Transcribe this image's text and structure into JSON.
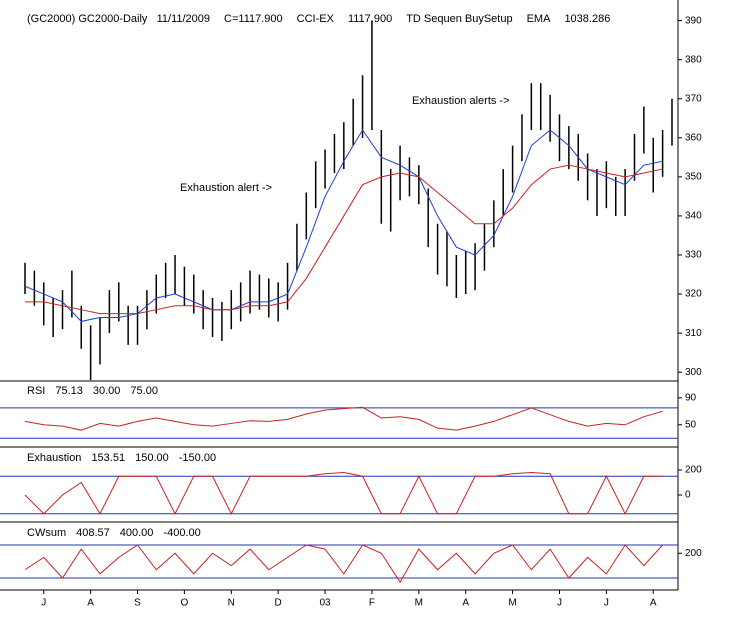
{
  "chart_data": [
    {
      "type": "ohlc",
      "header": [
        {
          "text": "(GC2000) GC2000-Daily   11/11/2009",
          "color": "#000000"
        },
        {
          "text": "C=1117.900",
          "color": "#22bb22"
        },
        {
          "text": "CCI-EX",
          "color": "#000000"
        },
        {
          "text": "1117.900",
          "color": "#dd2222"
        },
        {
          "text": "TD Sequen BuySetup",
          "color": "#000000"
        },
        {
          "text": "EMA",
          "color": "#000000"
        },
        {
          "text": "1038.286",
          "color": "#dd2222"
        }
      ],
      "annotations": [
        "Exhaustion alert ->",
        "Exhaustion alerts ->"
      ],
      "bar_color": "#000000",
      "high": [
        328,
        326,
        323,
        319,
        321,
        326,
        317,
        312,
        314,
        321,
        323,
        317,
        317,
        321,
        325,
        328,
        330,
        327,
        325,
        321,
        319,
        318,
        321,
        323,
        326,
        325,
        324,
        323,
        328,
        338,
        346,
        354,
        357,
        361,
        364,
        370,
        376,
        390,
        362,
        352,
        358,
        355,
        353,
        347,
        338,
        336,
        330,
        331,
        333,
        338,
        344,
        352,
        358,
        366,
        374,
        374,
        371,
        366,
        363,
        361,
        356,
        352,
        354,
        350,
        352,
        361,
        368,
        360,
        362,
        370
      ],
      "low": [
        320,
        317,
        312,
        309,
        311,
        314,
        306,
        298,
        302,
        310,
        313,
        307,
        307,
        311,
        315,
        319,
        320,
        317,
        315,
        311,
        309,
        308,
        311,
        313,
        315,
        316,
        314,
        313,
        316,
        326,
        334,
        342,
        347,
        351,
        352,
        358,
        360,
        362,
        338,
        336,
        344,
        345,
        343,
        332,
        325,
        322,
        319,
        320,
        321,
        326,
        332,
        340,
        346,
        354,
        362,
        362,
        359,
        354,
        352,
        349,
        344,
        340,
        342,
        340,
        340,
        349,
        356,
        346,
        350,
        358
      ],
      "ema": {
        "x": [
          0,
          2,
          4,
          6,
          8,
          10,
          12,
          14,
          16,
          18,
          20,
          22,
          24,
          26,
          28,
          30,
          32,
          34,
          36,
          38,
          40,
          42,
          44,
          46,
          48,
          50,
          52,
          54,
          56,
          58,
          60,
          62,
          64,
          66,
          68
        ],
        "series": [
          {
            "color": "#1f3fd8",
            "values": [
              322,
              320,
              318,
              313,
              314,
              314,
              315,
              319,
              320,
              318,
              316,
              316,
              318,
              318,
              320,
              332,
              345,
              354,
              362,
              355,
              353,
              350,
              340,
              332,
              330,
              335,
              345,
              358,
              362,
              358,
              352,
              350,
              348,
              353,
              354
            ]
          },
          {
            "color": "#cc2222",
            "values": [
              318,
              318,
              317,
              316,
              315,
              315,
              315,
              316,
              317,
              317,
              316,
              316,
              317,
              317,
              318,
              324,
              332,
              340,
              348,
              350,
              351,
              350,
              346,
              342,
              338,
              338,
              342,
              348,
              352,
              353,
              352,
              351,
              350,
              351,
              352
            ]
          }
        ]
      },
      "xlim": [
        0,
        69
      ],
      "xticks": [
        {
          "value": 2,
          "label": "J"
        },
        {
          "value": 7,
          "label": "A"
        },
        {
          "value": 12,
          "label": "S"
        },
        {
          "value": 17,
          "label": "O"
        },
        {
          "value": 22,
          "label": "N"
        },
        {
          "value": 27,
          "label": "D"
        },
        {
          "value": 32,
          "label": "03"
        },
        {
          "value": 37,
          "label": "F"
        },
        {
          "value": 42,
          "label": "M"
        },
        {
          "value": 47,
          "label": "A"
        },
        {
          "value": 52,
          "label": "M"
        },
        {
          "value": 57,
          "label": "J"
        },
        {
          "value": 62,
          "label": "J"
        },
        {
          "value": 67,
          "label": "A"
        }
      ],
      "ylim": [
        298,
        394
      ],
      "yticks": [
        300,
        310,
        320,
        330,
        340,
        350,
        360,
        370,
        380,
        390
      ]
    },
    {
      "type": "line",
      "name": "RSI",
      "current": "75.13",
      "levels": [
        {
          "value": 30,
          "label": "30.00"
        },
        {
          "value": 75,
          "label": "75.00"
        }
      ],
      "color": "#cc2222",
      "x": [
        0,
        2,
        4,
        6,
        8,
        10,
        12,
        14,
        16,
        18,
        20,
        22,
        24,
        26,
        28,
        30,
        32,
        34,
        36,
        38,
        40,
        42,
        44,
        46,
        48,
        50,
        52,
        54,
        56,
        58,
        60,
        62,
        64,
        66,
        68
      ],
      "values": [
        55,
        50,
        48,
        42,
        52,
        48,
        55,
        60,
        55,
        50,
        48,
        52,
        56,
        55,
        58,
        66,
        72,
        74,
        76,
        60,
        62,
        58,
        45,
        42,
        48,
        55,
        65,
        75,
        65,
        55,
        48,
        52,
        50,
        62,
        70
      ],
      "ylim": [
        20,
        112
      ],
      "yticks": [
        50,
        90
      ]
    },
    {
      "type": "line",
      "name": "Exhaustion",
      "current": "153.51",
      "levels": [
        {
          "value": 150,
          "label": "150.00"
        },
        {
          "value": -150,
          "label": "-150.00"
        }
      ],
      "color": "#cc2222",
      "x": [
        0,
        2,
        4,
        6,
        8,
        10,
        12,
        14,
        16,
        18,
        20,
        22,
        24,
        26,
        28,
        30,
        32,
        34,
        36,
        38,
        40,
        42,
        44,
        46,
        48,
        50,
        52,
        54,
        56,
        58,
        60,
        62,
        64,
        66,
        68
      ],
      "values": [
        0,
        -150,
        0,
        100,
        -150,
        150,
        150,
        150,
        -150,
        150,
        150,
        -150,
        150,
        150,
        150,
        150,
        170,
        180,
        150,
        -150,
        -150,
        150,
        -150,
        -150,
        150,
        150,
        170,
        180,
        170,
        -150,
        -150,
        150,
        -150,
        150,
        150
      ],
      "ylim": [
        -216,
        360
      ],
      "yticks": [
        0,
        200
      ]
    },
    {
      "type": "line",
      "name": "CWsum",
      "current": "408.57",
      "levels": [
        {
          "value": 400,
          "label": "400.00"
        },
        {
          "value": -400,
          "label": "-400.00"
        }
      ],
      "color": "#cc2222",
      "x": [
        0,
        2,
        4,
        6,
        8,
        10,
        12,
        14,
        16,
        18,
        20,
        22,
        24,
        26,
        28,
        30,
        32,
        34,
        36,
        38,
        40,
        42,
        44,
        46,
        48,
        50,
        52,
        54,
        56,
        58,
        60,
        62,
        64,
        66,
        68
      ],
      "values": [
        -200,
        100,
        -400,
        300,
        -300,
        100,
        400,
        -200,
        200,
        -300,
        200,
        -100,
        300,
        -200,
        100,
        400,
        300,
        -300,
        400,
        200,
        -500,
        300,
        -200,
        200,
        -300,
        200,
        400,
        -200,
        300,
        -400,
        100,
        -300,
        400,
        -100,
        400
      ],
      "ylim": [
        -521,
        885
      ],
      "yticks": [
        200
      ]
    }
  ]
}
